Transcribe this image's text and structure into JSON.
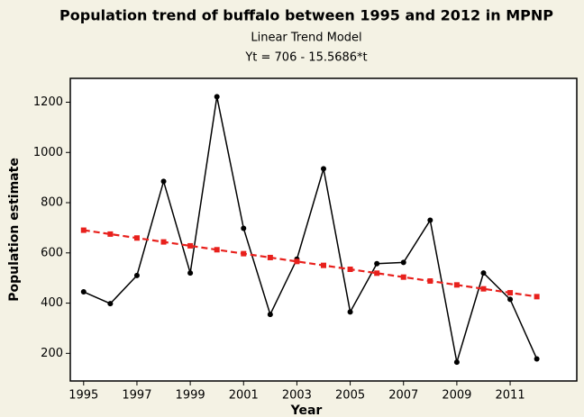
{
  "chart_data": {
    "type": "line",
    "title": "Population trend of buffalo between 1995 and 2012 in MPNP",
    "subtitle": "Linear Trend Model",
    "equation": "Yt = 706 - 15.5686*t",
    "x_label": "Year",
    "y_label": "Population estimate",
    "x": [
      1995,
      1996,
      1997,
      1998,
      1999,
      2000,
      2001,
      2002,
      2003,
      2004,
      2005,
      2006,
      2007,
      2008,
      2009,
      2010,
      2011,
      2012
    ],
    "series": [
      {
        "color": "#000000",
        "marker": "circle",
        "dashed": false,
        "values": [
          445,
          398,
          510,
          885,
          520,
          1222,
          698,
          355,
          575,
          935,
          365,
          557,
          562,
          730,
          165,
          520,
          415,
          178
        ]
      },
      {
        "color": "#e8201c",
        "marker": "square",
        "dashed": true,
        "values": [
          690.4,
          674.9,
          659.3,
          643.7,
          628.2,
          612.6,
          597.0,
          581.5,
          565.9,
          550.3,
          534.7,
          519.2,
          503.6,
          488.0,
          472.5,
          456.9,
          441.3,
          425.8
        ]
      }
    ],
    "xlim": [
      1994.5,
      2013.5
    ],
    "xticks": [
      1995,
      1997,
      1999,
      2001,
      2003,
      2005,
      2007,
      2009,
      2011
    ],
    "ylim": [
      90,
      1295
    ],
    "yticks": [
      200,
      400,
      600,
      800,
      1000,
      1200
    ]
  }
}
